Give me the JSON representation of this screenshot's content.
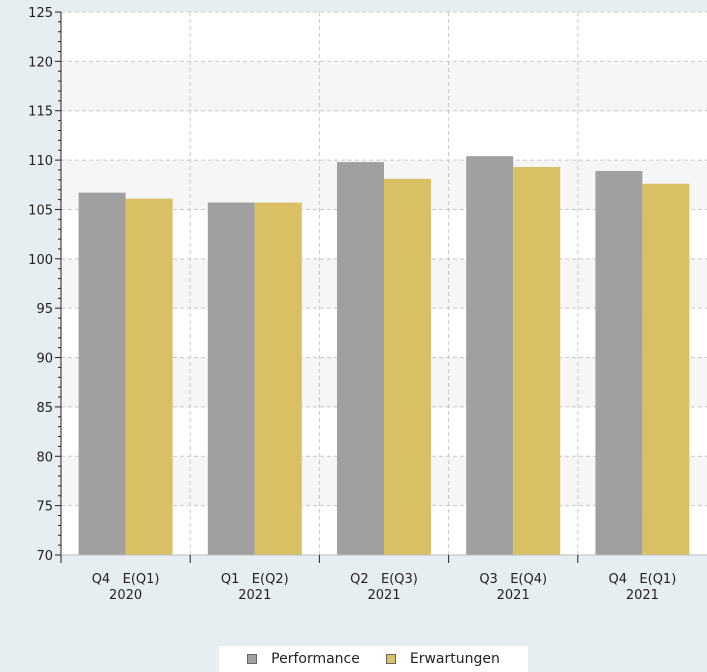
{
  "chart_data": {
    "type": "bar",
    "categories": [
      [
        "Q4   E(Q1)",
        "2020"
      ],
      [
        "Q1   E(Q2)",
        "2021"
      ],
      [
        "Q2   E(Q3)",
        "2021"
      ],
      [
        "Q3   E(Q4)",
        "2021"
      ],
      [
        "Q4   E(Q1)",
        "2021"
      ]
    ],
    "series": [
      {
        "name": "Performance",
        "values": [
          106.7,
          105.7,
          109.8,
          110.4,
          108.9
        ],
        "color": "#a0a0a0"
      },
      {
        "name": "Erwartungen",
        "values": [
          106.1,
          105.7,
          108.1,
          109.3,
          107.6
        ],
        "color": "#d9c064"
      }
    ],
    "ylim": [
      70,
      125
    ],
    "y_ticks": [
      70,
      75,
      80,
      85,
      90,
      95,
      100,
      105,
      110,
      115,
      120,
      125
    ],
    "grid": true,
    "legend_position": "bottom",
    "title": "",
    "xlabel": "",
    "ylabel": ""
  },
  "legend": {
    "items": [
      {
        "label": "Performance",
        "color": "#a0a0a0"
      },
      {
        "label": "Erwartungen",
        "color": "#d9c064"
      }
    ]
  }
}
